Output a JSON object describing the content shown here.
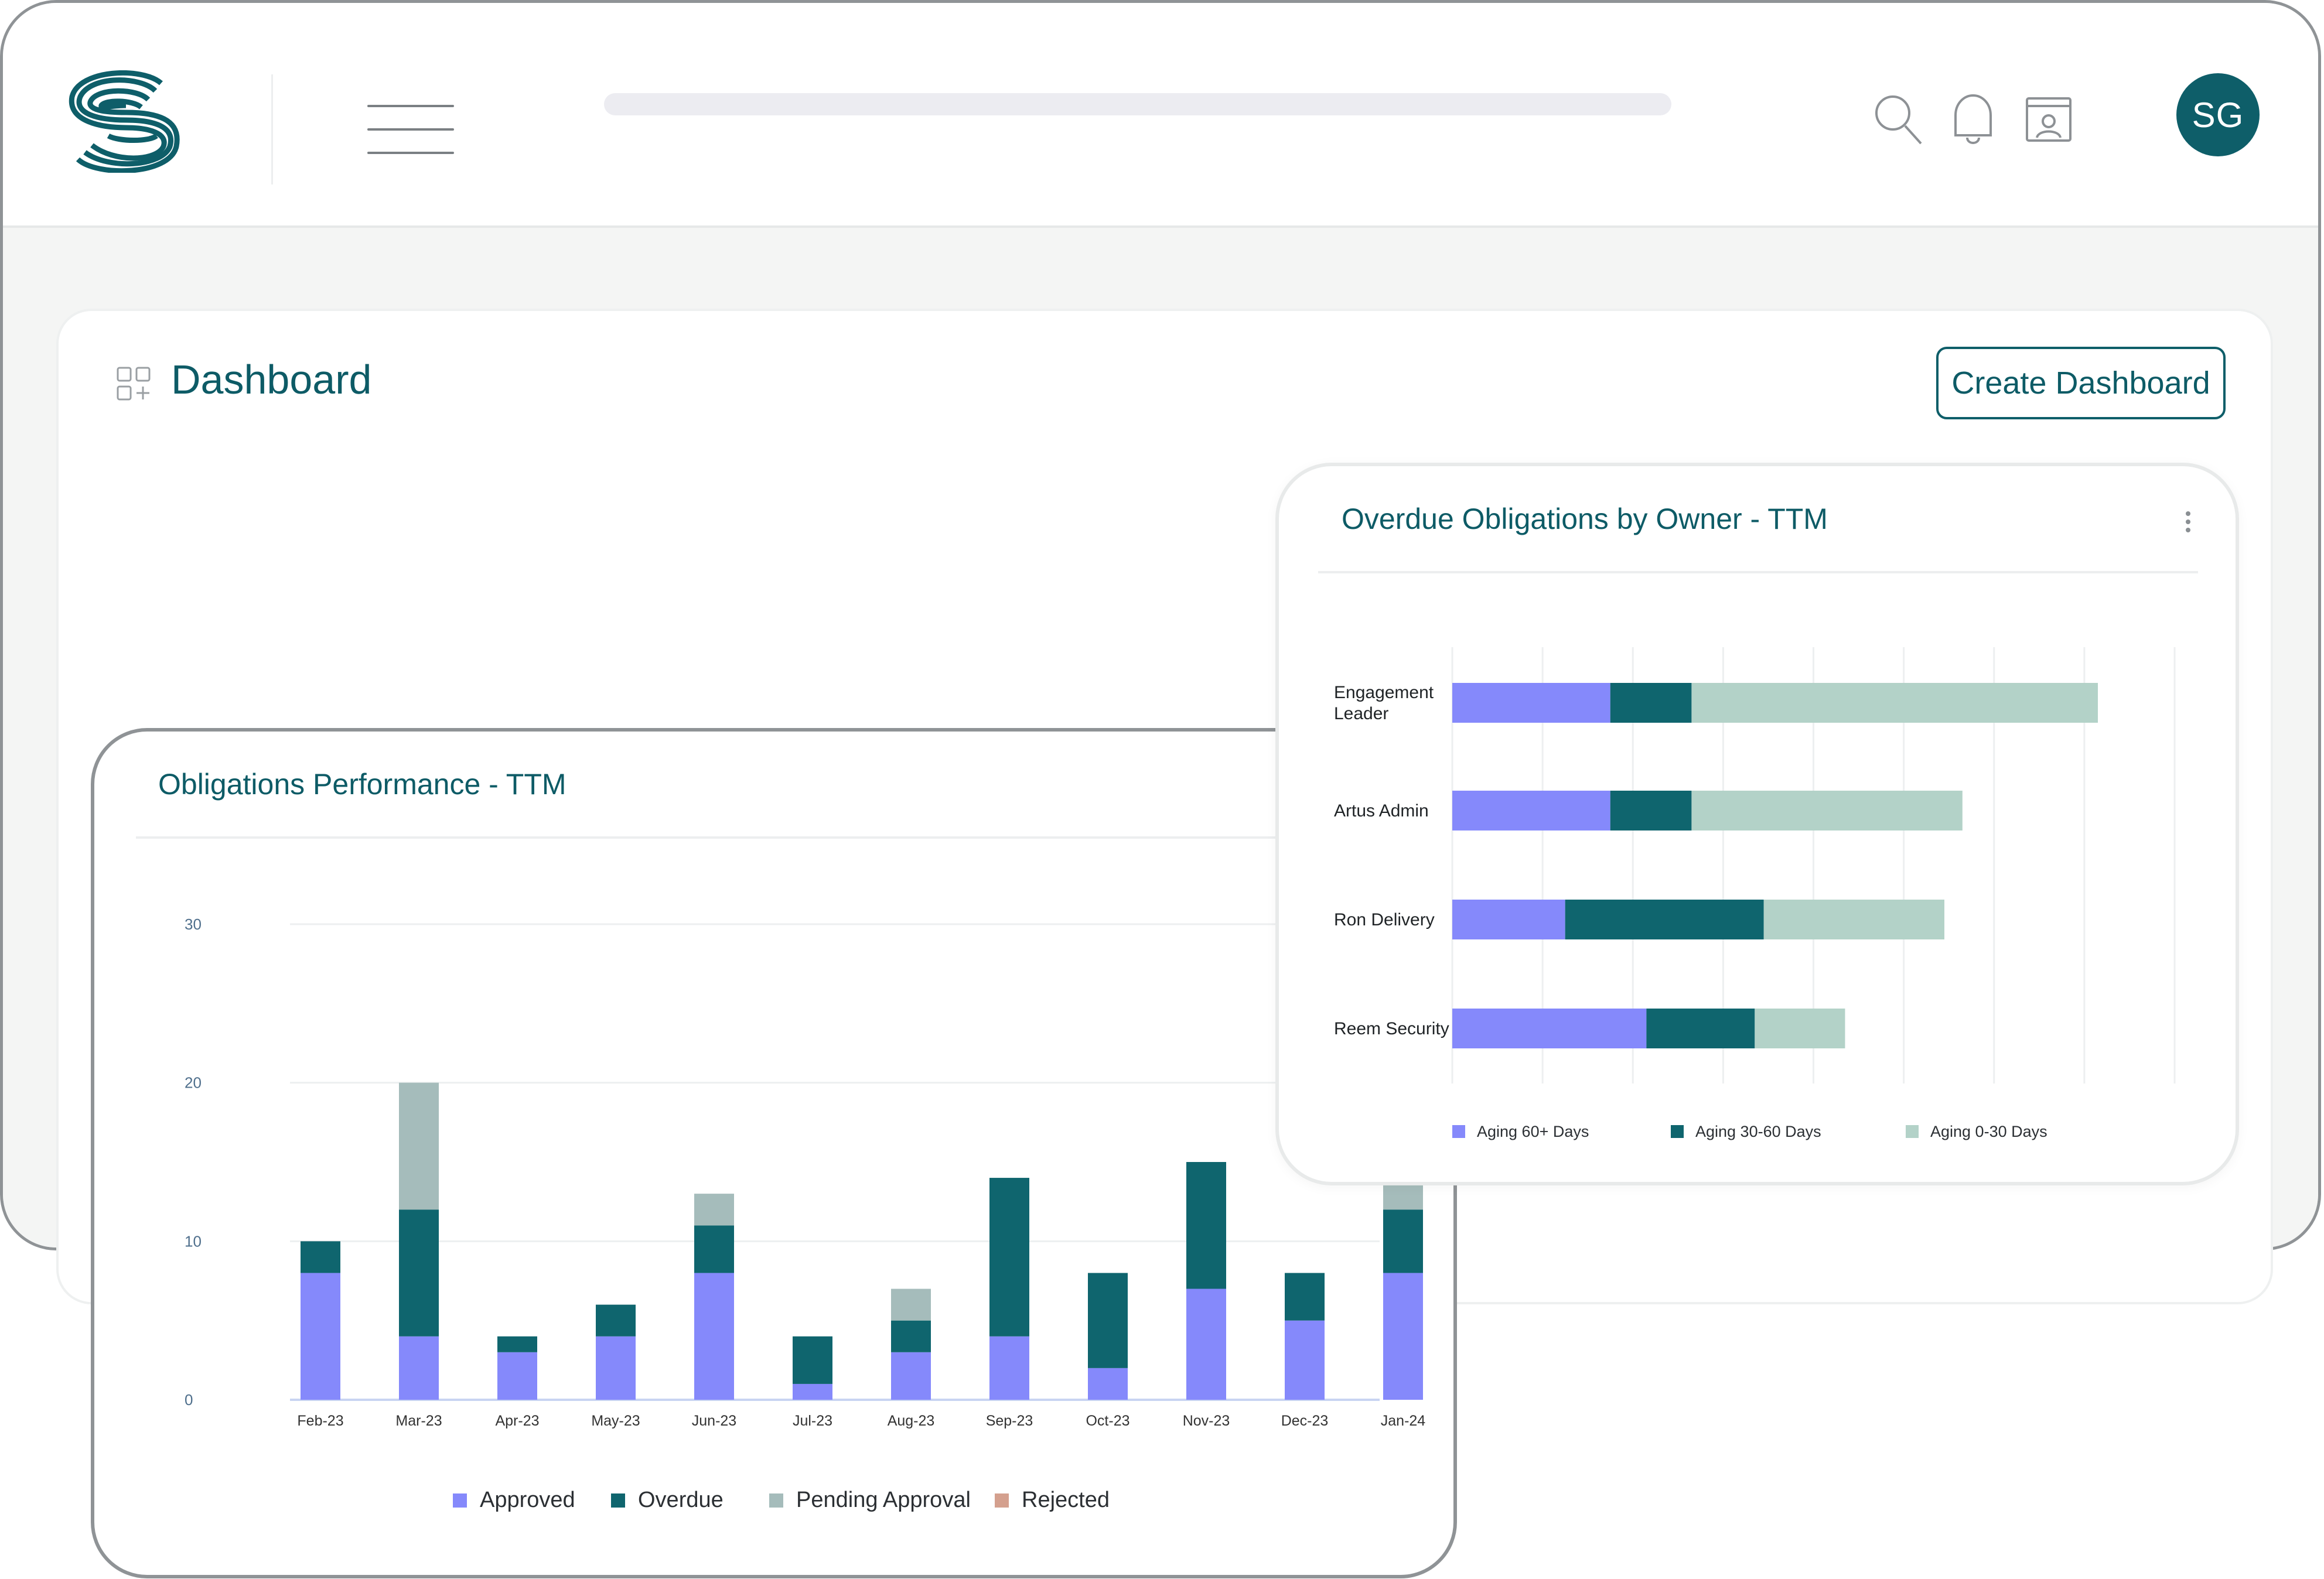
{
  "header": {
    "avatar_initials": "SG",
    "brand_color": "#0e5e69",
    "icons": [
      "logo-icon",
      "menu-icon",
      "search-icon",
      "bell-icon",
      "profile-window-icon"
    ]
  },
  "page": {
    "title": "Dashboard",
    "create_button_label": "Create Dashboard"
  },
  "cards": {
    "performance": {
      "title": "Obligations Performance - TTM"
    },
    "overdue": {
      "title": "Overdue Obligations by Owner - TTM"
    }
  },
  "chart_data": [
    {
      "type": "bar",
      "stacked": true,
      "title": "Obligations Performance - TTM",
      "categories": [
        "Feb-23",
        "Mar-23",
        "Apr-23",
        "May-23",
        "Jun-23",
        "Jul-23",
        "Aug-23",
        "Sep-23",
        "Oct-23",
        "Nov-23",
        "Dec-23",
        "Jan-24"
      ],
      "series": [
        {
          "name": "Approved",
          "color": "#8589fb",
          "values": [
            8,
            4,
            3,
            4,
            8,
            1,
            3,
            4,
            2,
            7,
            5,
            8
          ]
        },
        {
          "name": "Overdue",
          "color": "#0f656e",
          "values": [
            2,
            8,
            1,
            2,
            3,
            3,
            2,
            10,
            6,
            8,
            3,
            4
          ]
        },
        {
          "name": "Pending Approval",
          "color": "#a5bcbb",
          "values": [
            0,
            8,
            0,
            0,
            2,
            0,
            2,
            0,
            0,
            0,
            0,
            3
          ]
        },
        {
          "name": "Rejected",
          "color": "#d4a08e",
          "values": [
            0,
            0,
            0,
            0,
            0,
            0,
            0,
            0,
            0,
            0,
            0,
            0
          ]
        }
      ],
      "yticks": [
        0,
        10,
        20,
        30
      ],
      "ylim": [
        0,
        30
      ],
      "grid": true,
      "legend": "bottom"
    },
    {
      "type": "bar",
      "orientation": "horizontal",
      "stacked": true,
      "title": "Overdue Obligations by Owner - TTM",
      "categories": [
        [
          "Engagement",
          "Leader"
        ],
        [
          "Artus Admin"
        ],
        [
          "Ron Delivery"
        ],
        [
          "Reem Security"
        ]
      ],
      "series": [
        {
          "name": "Aging 60+ Days",
          "color": "#8589fb",
          "values": [
            3.5,
            3.5,
            2.5,
            4.3
          ]
        },
        {
          "name": "Aging 30-60 Days",
          "color": "#0f656e",
          "values": [
            1.8,
            1.8,
            4.4,
            2.4
          ]
        },
        {
          "name": "Aging 0-30 Days",
          "color": "#b3d2c8",
          "values": [
            9.0,
            6.0,
            4.0,
            2.0
          ]
        }
      ],
      "xlim": [
        0,
        16
      ],
      "grid": true,
      "legend": "bottom"
    }
  ]
}
